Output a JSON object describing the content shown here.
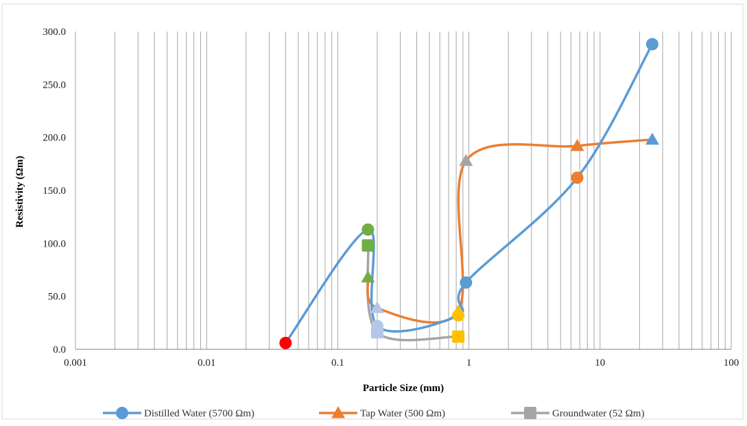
{
  "chart_data": {
    "type": "scatter",
    "title": "",
    "xlabel": "Particle Size (mm)",
    "ylabel": "Resistivity (Ωm)",
    "x_scale": "log",
    "xlim": [
      0.001,
      100
    ],
    "ylim": [
      0,
      300
    ],
    "x_ticks": [
      {
        "value": 0.001,
        "label": "0.001"
      },
      {
        "value": 0.01,
        "label": "0.01"
      },
      {
        "value": 0.1,
        "label": "0.1"
      },
      {
        "value": 1,
        "label": "1"
      },
      {
        "value": 10,
        "label": "10"
      },
      {
        "value": 100,
        "label": "100"
      }
    ],
    "y_ticks": [
      {
        "value": 0,
        "label": "0.0"
      },
      {
        "value": 50,
        "label": "50.0"
      },
      {
        "value": 100,
        "label": "100.0"
      },
      {
        "value": 150,
        "label": "150.0"
      },
      {
        "value": 200,
        "label": "200.0"
      },
      {
        "value": 250,
        "label": "250.0"
      },
      {
        "value": 300,
        "label": "300.0"
      }
    ],
    "grid": {
      "x_minor_log": true,
      "y": false
    },
    "legend_position": "bottom",
    "series": [
      {
        "name": "Distilled Water (5700 Ωm)",
        "color": "#5b9bd5",
        "marker": "circle",
        "smooth": true,
        "points": [
          {
            "x": 0.04,
            "y": 6,
            "color": "#ff0000"
          },
          {
            "x": 0.17,
            "y": 113,
            "color": "#70ad47"
          },
          {
            "x": 0.2,
            "y": 22,
            "color": "#b4c7e7"
          },
          {
            "x": 0.83,
            "y": 32,
            "color": "#ffc000"
          },
          {
            "x": 0.95,
            "y": 63
          },
          {
            "x": 6.7,
            "y": 162,
            "color": "#ed7d31"
          },
          {
            "x": 25,
            "y": 288
          }
        ]
      },
      {
        "name": "Tap Water (500 Ωm)",
        "color": "#ed7d31",
        "marker": "triangle",
        "smooth": true,
        "points": [
          {
            "x": 0.17,
            "y": 68,
            "color": "#70ad47"
          },
          {
            "x": 0.2,
            "y": 39,
            "color": "#b4c7e7"
          },
          {
            "x": 0.83,
            "y": 36,
            "color": "#ffc000"
          },
          {
            "x": 0.95,
            "y": 178,
            "color": "#a5a5a5"
          },
          {
            "x": 6.7,
            "y": 192
          },
          {
            "x": 25,
            "y": 198,
            "color": "#5b9bd5"
          }
        ]
      },
      {
        "name": "Groundwater (52 Ωm)",
        "color": "#a5a5a5",
        "marker": "square",
        "smooth": true,
        "points": [
          {
            "x": 0.17,
            "y": 98,
            "color": "#70ad47"
          },
          {
            "x": 0.2,
            "y": 16,
            "color": "#b4c7e7"
          },
          {
            "x": 0.83,
            "y": 12,
            "color": "#ffc000"
          }
        ]
      }
    ]
  }
}
